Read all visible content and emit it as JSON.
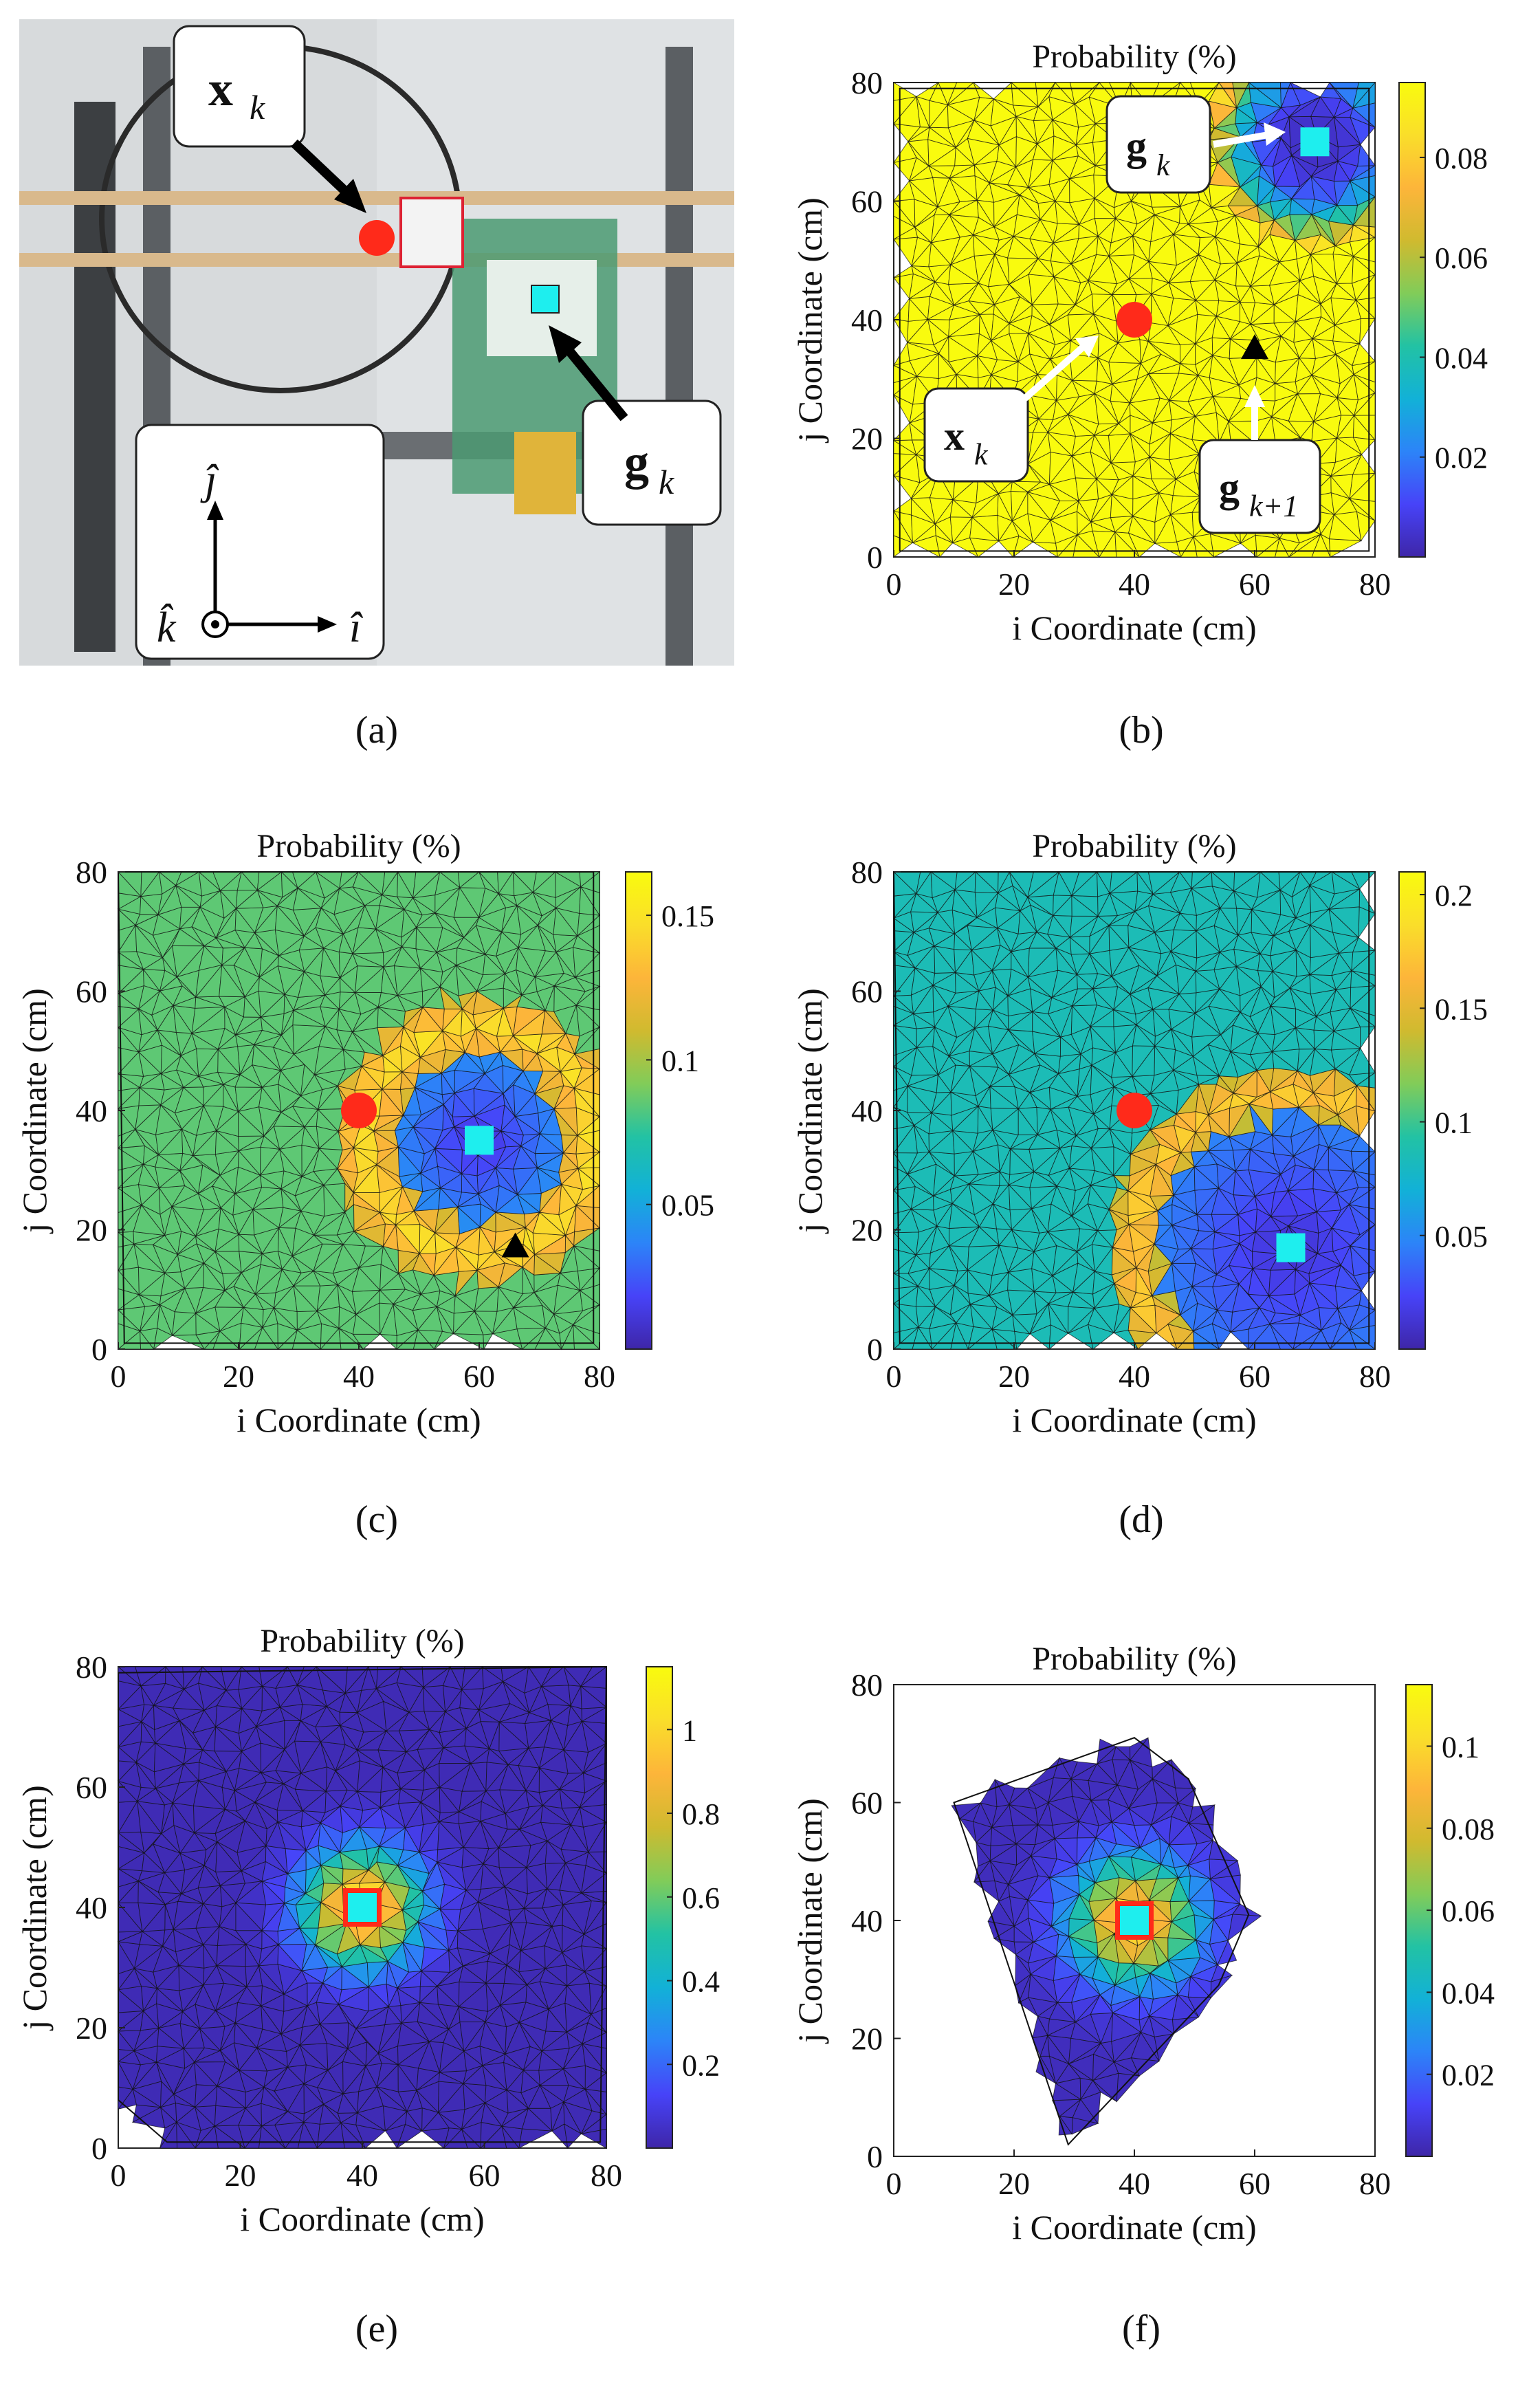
{
  "colors": {
    "parula": [
      "#3e26a8",
      "#4743f8",
      "#2c84f8",
      "#12b1d7",
      "#22c2a4",
      "#81cc59",
      "#d0ba2f",
      "#fdb53a",
      "#fade2a",
      "#f9fb0e"
    ],
    "red_marker": "#ff2a1a",
    "cyan_marker": "#1eeeee",
    "callout_bg": "#ffffff",
    "black_marker": "#000000"
  },
  "panel_a": {
    "caption": "(a)",
    "callouts": [
      {
        "id": "xk",
        "label": "x",
        "subscript": "k"
      },
      {
        "id": "gk",
        "label": "g",
        "subscript": "k"
      }
    ],
    "axes_labels": {
      "j": "ĵ",
      "i": "î",
      "k": "k̂"
    }
  },
  "chart_data": [
    {
      "id": "b",
      "caption": "(b)",
      "type": "heatmap",
      "title": "Probability (%)",
      "xlabel": "i Coordinate (cm)",
      "ylabel": "j Coordinate (cm)",
      "xlim": [
        0,
        80
      ],
      "ylim": [
        0,
        80
      ],
      "xticks": [
        "0",
        "20",
        "40",
        "60",
        "80"
      ],
      "yticks": [
        "0",
        "20",
        "40",
        "60",
        "80"
      ],
      "colorbar": {
        "min": 0,
        "max": 0.095,
        "ticks": [
          0.02,
          0.04,
          0.06,
          0.08
        ],
        "tick_labels": [
          "0.02",
          "0.04",
          "0.06",
          "0.08"
        ]
      },
      "field": {
        "kind": "ring_low",
        "base": 0.095,
        "low_center": [
          70,
          70
        ],
        "low_radius": 18,
        "low_value": 0.004
      },
      "boundary": [
        [
          1,
          79
        ],
        [
          79,
          79
        ],
        [
          79,
          1
        ],
        [
          1,
          1
        ]
      ],
      "markers": {
        "x_k": [
          40,
          40
        ],
        "g_k": [
          70,
          70
        ],
        "g_k1": [
          60,
          35
        ]
      },
      "annotations": [
        {
          "label": "g",
          "subscript": "k"
        },
        {
          "label": "x",
          "subscript": "k"
        },
        {
          "label": "g",
          "subscript": "k+1"
        }
      ]
    },
    {
      "id": "c",
      "caption": "(c)",
      "type": "heatmap",
      "title": "Probability (%)",
      "xlabel": "i Coordinate (cm)",
      "ylabel": "j Coordinate (cm)",
      "xlim": [
        0,
        80
      ],
      "ylim": [
        0,
        80
      ],
      "xticks": [
        "0",
        "20",
        "40",
        "60",
        "80"
      ],
      "yticks": [
        "0",
        "20",
        "40",
        "60",
        "80"
      ],
      "colorbar": {
        "min": 0,
        "max": 0.165,
        "ticks": [
          0.05,
          0.1,
          0.15
        ],
        "tick_labels": [
          "0.05",
          "0.1",
          "0.15"
        ]
      },
      "field": {
        "kind": "ring",
        "base": 0.085,
        "center": [
          60,
          35
        ],
        "inner": 14,
        "outer": 24,
        "ring_value": 0.15,
        "low_value": 0.01
      },
      "boundary": [
        [
          0,
          80
        ],
        [
          79,
          80
        ],
        [
          79,
          1
        ],
        [
          1,
          1
        ]
      ],
      "markers": {
        "x_k": [
          40,
          40
        ],
        "g_k": [
          60,
          35
        ],
        "g_k1": [
          66,
          17
        ]
      }
    },
    {
      "id": "d",
      "caption": "(d)",
      "type": "heatmap",
      "title": "Probability (%)",
      "xlabel": "i Coordinate (cm)",
      "ylabel": "j Coordinate (cm)",
      "xlim": [
        0,
        80
      ],
      "ylim": [
        0,
        80
      ],
      "xticks": [
        "0",
        "20",
        "40",
        "60",
        "80"
      ],
      "yticks": [
        "0",
        "20",
        "40",
        "60",
        "80"
      ],
      "colorbar": {
        "min": 0,
        "max": 0.21,
        "ticks": [
          0.05,
          0.1,
          0.15,
          0.2
        ],
        "tick_labels": [
          "0.05",
          "0.1",
          "0.15",
          "0.2"
        ]
      },
      "field": {
        "kind": "ring",
        "base": 0.085,
        "center": [
          66,
          17
        ],
        "inner": 22,
        "outer": 30,
        "ring_value": 0.18,
        "low_value": 0.01
      },
      "boundary": [
        [
          0,
          80
        ],
        [
          79,
          80
        ],
        [
          79,
          1
        ],
        [
          1,
          1
        ]
      ],
      "markers": {
        "x_k": [
          40,
          40
        ],
        "g_k": [
          66,
          17
        ]
      }
    },
    {
      "id": "e",
      "caption": "(e)",
      "type": "heatmap",
      "title": "Probability (%)",
      "xlabel": "i Coordinate (cm)",
      "ylabel": "j Coordinate (cm)",
      "xlim": [
        0,
        80
      ],
      "ylim": [
        0,
        80
      ],
      "xticks": [
        "0",
        "20",
        "40",
        "60",
        "80"
      ],
      "yticks": [
        "0",
        "20",
        "40",
        "60",
        "80"
      ],
      "colorbar": {
        "min": 0,
        "max": 1.15,
        "ticks": [
          0.2,
          0.4,
          0.6,
          0.8,
          1.0
        ],
        "tick_labels": [
          "0.2",
          "0.4",
          "0.6",
          "0.8",
          "1"
        ]
      },
      "field": {
        "kind": "blob",
        "base": 0.02,
        "center": [
          40,
          40
        ],
        "radius": 12,
        "peak": 1.1
      },
      "boundary": [
        [
          0,
          79
        ],
        [
          80,
          80
        ],
        [
          79,
          1
        ],
        [
          8,
          1
        ],
        [
          0,
          8
        ]
      ],
      "markers": {
        "g_k": [
          40,
          40
        ],
        "x_k": [
          40,
          40
        ]
      }
    },
    {
      "id": "f",
      "caption": "(f)",
      "type": "heatmap",
      "title": "Probability (%)",
      "xlabel": "i Coordinate (cm)",
      "ylabel": "j Coordinate (cm)",
      "xlim": [
        0,
        80
      ],
      "ylim": [
        0,
        80
      ],
      "xticks": [
        "0",
        "20",
        "40",
        "60",
        "80"
      ],
      "yticks": [
        "0",
        "20",
        "40",
        "60",
        "80"
      ],
      "colorbar": {
        "min": 0,
        "max": 0.115,
        "ticks": [
          0.02,
          0.04,
          0.06,
          0.08,
          0.1
        ],
        "tick_labels": [
          "0.02",
          "0.04",
          "0.06",
          "0.08",
          "0.1"
        ]
      },
      "field": {
        "kind": "blob",
        "base": 0.003,
        "center": [
          40,
          40
        ],
        "radius": 13,
        "peak": 0.105
      },
      "boundary": [
        [
          10,
          60
        ],
        [
          40,
          71
        ],
        [
          49,
          64
        ],
        [
          59,
          41
        ],
        [
          54,
          29
        ],
        [
          29,
          2
        ]
      ],
      "markers": {
        "g_k": [
          40,
          40
        ],
        "x_k": [
          40,
          40
        ]
      }
    }
  ]
}
